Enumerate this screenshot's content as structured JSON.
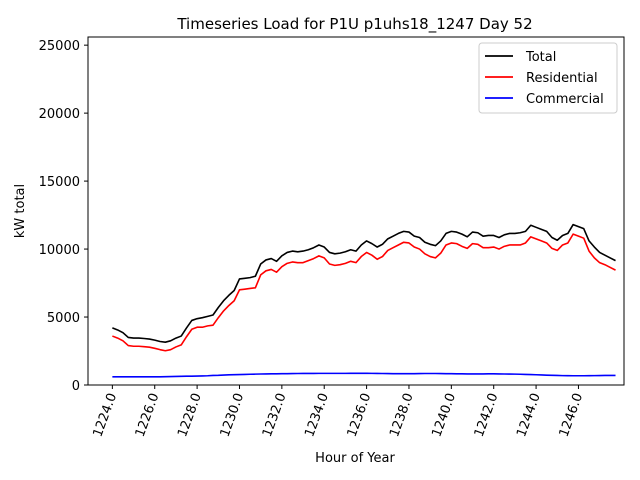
{
  "chart_data": {
    "type": "line",
    "title": "Timeseries Load for P1U p1uhs18_1247  Day 52",
    "xlabel": "Hour of Year",
    "ylabel": "kW total",
    "xlim": [
      1222.85,
      1248.15
    ],
    "ylim": [
      0,
      25600
    ],
    "xticks": [
      1224,
      1226,
      1228,
      1230,
      1232,
      1234,
      1236,
      1238,
      1240,
      1242,
      1244,
      1246
    ],
    "xtick_labels": [
      "1224.0",
      "1226.0",
      "1228.0",
      "1230.0",
      "1232.0",
      "1234.0",
      "1236.0",
      "1238.0",
      "1240.0",
      "1242.0",
      "1244.0",
      "1246.0"
    ],
    "yticks": [
      0,
      5000,
      10000,
      15000,
      20000,
      25000
    ],
    "ytick_labels": [
      "0",
      "5000",
      "10000",
      "15000",
      "20000",
      "25000"
    ],
    "grid": false,
    "legend_position": "top-right",
    "x": [
      1224.0,
      1224.25,
      1224.5,
      1224.75,
      1225.0,
      1225.25,
      1225.5,
      1225.75,
      1226.0,
      1226.25,
      1226.5,
      1226.75,
      1227.0,
      1227.25,
      1227.5,
      1227.75,
      1228.0,
      1228.25,
      1228.5,
      1228.75,
      1229.0,
      1229.25,
      1229.5,
      1229.75,
      1230.0,
      1230.25,
      1230.5,
      1230.75,
      1231.0,
      1231.25,
      1231.5,
      1231.75,
      1232.0,
      1232.25,
      1232.5,
      1232.75,
      1233.0,
      1233.25,
      1233.5,
      1233.75,
      1234.0,
      1234.25,
      1234.5,
      1234.75,
      1235.0,
      1235.25,
      1235.5,
      1235.75,
      1236.0,
      1236.25,
      1236.5,
      1236.75,
      1237.0,
      1237.25,
      1237.5,
      1237.75,
      1238.0,
      1238.25,
      1238.5,
      1238.75,
      1239.0,
      1239.25,
      1239.5,
      1239.75,
      1240.0,
      1240.25,
      1240.5,
      1240.75,
      1241.0,
      1241.25,
      1241.5,
      1241.75,
      1242.0,
      1242.25,
      1242.5,
      1242.75,
      1243.0,
      1243.25,
      1243.5,
      1243.75,
      1244.0,
      1244.25,
      1244.5,
      1244.75,
      1245.0,
      1245.25,
      1245.5,
      1245.75,
      1246.0,
      1246.25,
      1246.5,
      1246.75,
      1247.0,
      1247.25,
      1247.5,
      1247.75
    ],
    "series": [
      {
        "name": "Total",
        "color": "#000000",
        "values": [
          4200,
          4050,
          3850,
          3500,
          3450,
          3450,
          3420,
          3380,
          3300,
          3200,
          3150,
          3250,
          3450,
          3600,
          4200,
          4750,
          4880,
          4950,
          5050,
          5150,
          5700,
          6200,
          6600,
          6950,
          7800,
          7850,
          7900,
          8000,
          8900,
          9200,
          9300,
          9100,
          9500,
          9750,
          9850,
          9800,
          9850,
          9950,
          10100,
          10300,
          10150,
          9750,
          9650,
          9700,
          9800,
          9950,
          9850,
          10300,
          10600,
          10400,
          10150,
          10350,
          10750,
          10950,
          11150,
          11300,
          11250,
          10950,
          10850,
          10500,
          10350,
          10250,
          10600,
          11150,
          11300,
          11250,
          11100,
          10900,
          11250,
          11200,
          10950,
          11000,
          11000,
          10850,
          11050,
          11150,
          11150,
          11200,
          11300,
          11750,
          11600,
          11450,
          11300,
          10850,
          10650,
          11000,
          11150,
          11800,
          11650,
          11500,
          10600,
          10150,
          9750,
          9550,
          9350,
          9150
        ]
      },
      {
        "name": "Residential",
        "color": "#ff0000",
        "values": [
          3600,
          3450,
          3250,
          2900,
          2850,
          2850,
          2820,
          2780,
          2700,
          2600,
          2520,
          2600,
          2800,
          2950,
          3550,
          4100,
          4250,
          4250,
          4350,
          4400,
          4950,
          5450,
          5850,
          6200,
          7000,
          7050,
          7100,
          7150,
          8100,
          8400,
          8500,
          8300,
          8700,
          8950,
          9050,
          9000,
          9000,
          9150,
          9300,
          9500,
          9350,
          8900,
          8800,
          8850,
          8950,
          9100,
          9000,
          9450,
          9750,
          9550,
          9250,
          9450,
          9900,
          10100,
          10300,
          10500,
          10450,
          10150,
          10000,
          9650,
          9450,
          9350,
          9700,
          10300,
          10450,
          10400,
          10200,
          10050,
          10400,
          10350,
          10100,
          10100,
          10150,
          10000,
          10200,
          10300,
          10300,
          10300,
          10450,
          10900,
          10750,
          10600,
          10450,
          10050,
          9900,
          10300,
          10450,
          11100,
          10950,
          10800,
          9850,
          9350,
          9000,
          8850,
          8650,
          8450
        ]
      },
      {
        "name": "Commercial",
        "color": "#0000ff",
        "values": [
          600,
          600,
          600,
          600,
          600,
          600,
          600,
          600,
          600,
          600,
          610,
          620,
          630,
          640,
          650,
          650,
          660,
          670,
          680,
          700,
          710,
          730,
          750,
          760,
          770,
          780,
          790,
          800,
          810,
          815,
          820,
          825,
          830,
          835,
          840,
          845,
          850,
          850,
          850,
          855,
          855,
          855,
          855,
          855,
          855,
          860,
          860,
          860,
          860,
          855,
          850,
          845,
          840,
          835,
          830,
          830,
          830,
          835,
          840,
          845,
          845,
          845,
          840,
          835,
          830,
          825,
          820,
          815,
          815,
          815,
          815,
          820,
          820,
          815,
          810,
          805,
          800,
          790,
          780,
          770,
          755,
          740,
          725,
          710,
          700,
          690,
          685,
          680,
          680,
          680,
          685,
          690,
          695,
          700,
          700,
          700
        ]
      }
    ]
  }
}
